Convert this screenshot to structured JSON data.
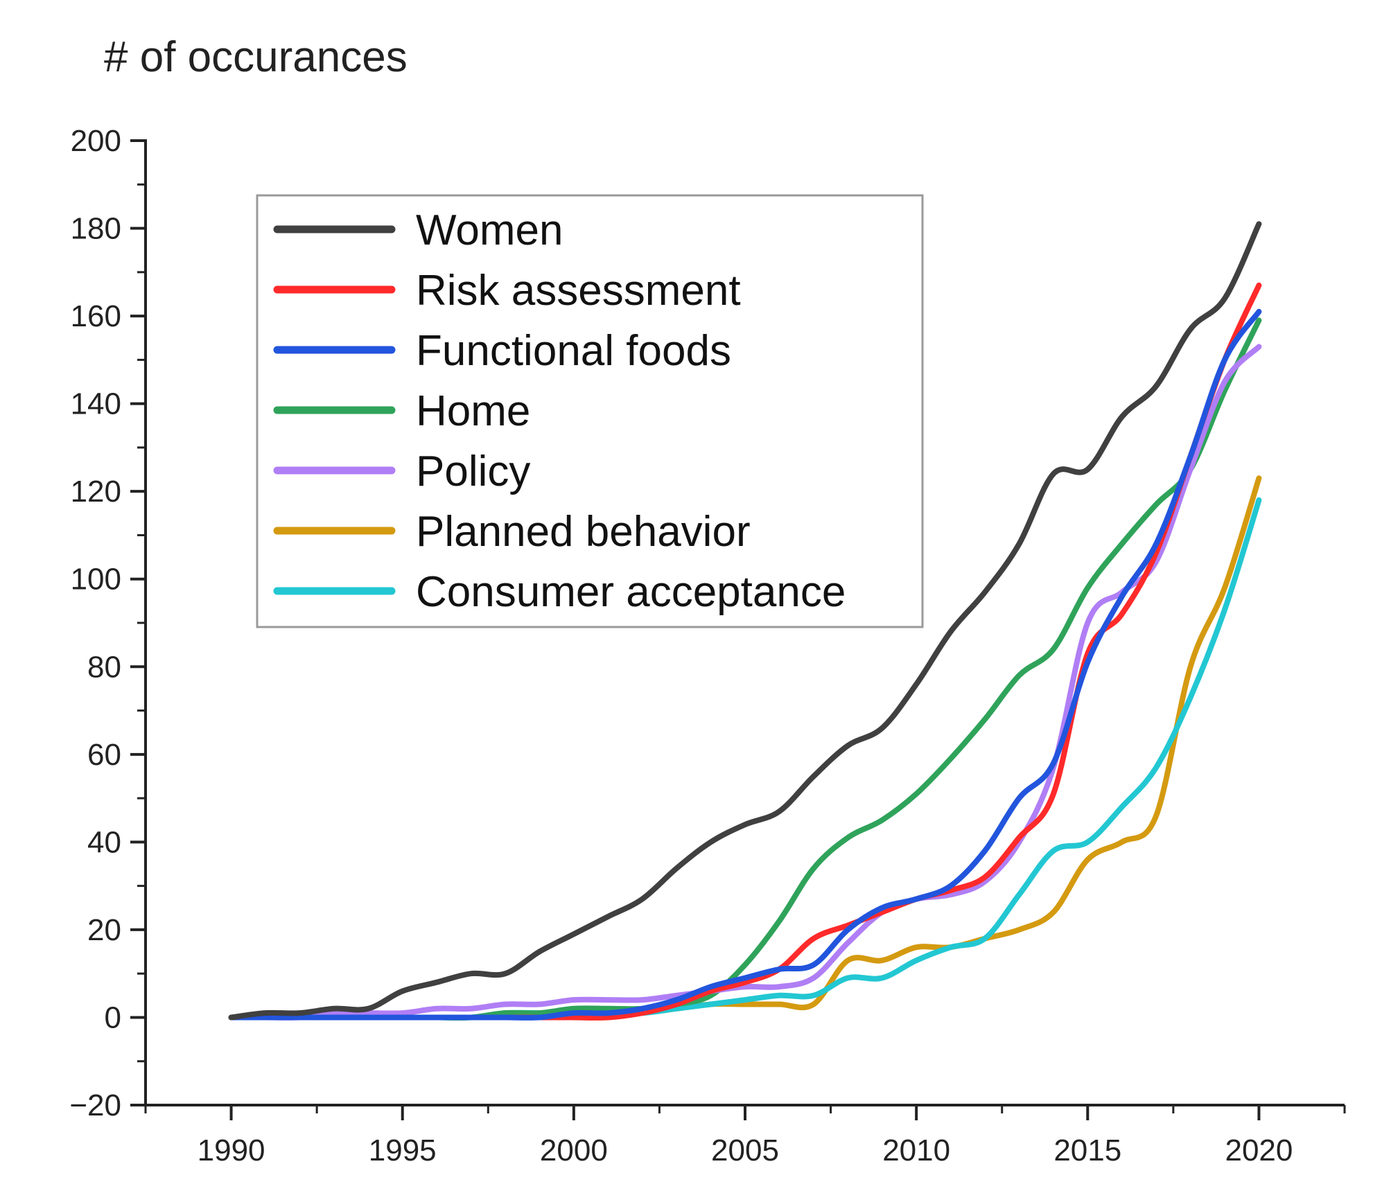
{
  "chart_data": {
    "type": "line",
    "title": "",
    "ylabel": "# of occurances",
    "xlabel": "",
    "xlim": [
      1987.5,
      2022.5
    ],
    "ylim": [
      -20,
      200
    ],
    "x_ticks": [
      1990,
      1995,
      2000,
      2005,
      2010,
      2015,
      2020
    ],
    "x_tick_labels": [
      "1990",
      "1995",
      "2000",
      "2005",
      "2010",
      "2015",
      "2020"
    ],
    "y_ticks": [
      -20,
      0,
      20,
      40,
      60,
      80,
      100,
      120,
      140,
      160,
      180,
      200
    ],
    "y_tick_labels": [
      "−20",
      "0",
      "20",
      "40",
      "60",
      "80",
      "100",
      "120",
      "140",
      "160",
      "180",
      "200"
    ],
    "grid": false,
    "legend_position": "top-left",
    "x": [
      1990,
      1991,
      1992,
      1993,
      1994,
      1995,
      1996,
      1997,
      1998,
      1999,
      2000,
      2001,
      2002,
      2003,
      2004,
      2005,
      2006,
      2007,
      2008,
      2009,
      2010,
      2011,
      2012,
      2013,
      2014,
      2015,
      2016,
      2017,
      2018,
      2019,
      2020
    ],
    "series": [
      {
        "name": "Women",
        "color": "#404040",
        "values": [
          0,
          1,
          1,
          2,
          2,
          6,
          8,
          10,
          10,
          15,
          19,
          23,
          27,
          34,
          40,
          44,
          47,
          55,
          62,
          66,
          76,
          88,
          97,
          108,
          124,
          125,
          137,
          144,
          157,
          164,
          181
        ]
      },
      {
        "name": "Risk assessment",
        "color": "#ff2a2a",
        "values": [
          0,
          0,
          0,
          0,
          0,
          0,
          0,
          0,
          0,
          0,
          0,
          0,
          1,
          3,
          6,
          8,
          11,
          18,
          21,
          24,
          27,
          29,
          32,
          41,
          51,
          83,
          92,
          106,
          128,
          150,
          167
        ]
      },
      {
        "name": "Functional foods",
        "color": "#2255dd",
        "values": [
          0,
          0,
          0,
          0,
          0,
          0,
          0,
          0,
          0,
          0,
          1,
          1,
          2,
          4,
          7,
          9,
          11,
          12,
          20,
          25,
          27,
          30,
          38,
          50,
          58,
          81,
          96,
          108,
          128,
          150,
          161
        ]
      },
      {
        "name": "Home",
        "color": "#2fa35a",
        "values": [
          0,
          0,
          0,
          0,
          0,
          0,
          0,
          0,
          1,
          1,
          2,
          2,
          2,
          3,
          5,
          12,
          22,
          34,
          41,
          45,
          51,
          59,
          68,
          78,
          84,
          98,
          108,
          117,
          125,
          143,
          159
        ]
      },
      {
        "name": "Policy",
        "color": "#b07ef5",
        "values": [
          0,
          0,
          0,
          1,
          1,
          1,
          2,
          2,
          3,
          3,
          4,
          4,
          4,
          5,
          6,
          7,
          7,
          9,
          17,
          24,
          27,
          28,
          31,
          40,
          57,
          90,
          97,
          104,
          125,
          145,
          153
        ]
      },
      {
        "name": "Planned behavior",
        "color": "#d49a10",
        "values": [
          0,
          0,
          0,
          0,
          0,
          0,
          0,
          0,
          0,
          0,
          0,
          0,
          1,
          2,
          3,
          3,
          3,
          3,
          13,
          13,
          16,
          16,
          18,
          20,
          24,
          36,
          40,
          46,
          80,
          98,
          123
        ]
      },
      {
        "name": "Consumer acceptance",
        "color": "#22c7d2",
        "values": [
          0,
          0,
          0,
          0,
          0,
          0,
          0,
          0,
          1,
          1,
          1,
          1,
          1,
          2,
          3,
          4,
          5,
          5,
          9,
          9,
          13,
          16,
          18,
          28,
          38,
          40,
          48,
          57,
          73,
          93,
          118
        ]
      }
    ]
  }
}
